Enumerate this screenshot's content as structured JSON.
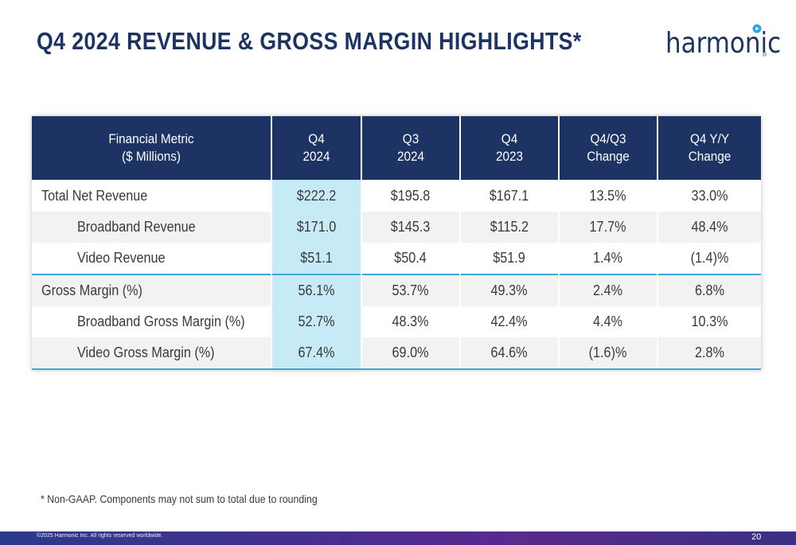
{
  "title": "Q4 2024 REVENUE & GROSS MARGIN HIGHLIGHTS*",
  "logo": {
    "text": "harmonic",
    "registered": "®",
    "icon": "play-dot-icon",
    "colors": {
      "text": "#1d3363",
      "dot": "#2aa7df"
    }
  },
  "table": {
    "headers": [
      {
        "line1": "Financial Metric",
        "line2": "($ Millions)"
      },
      {
        "line1": "Q4",
        "line2": "2024"
      },
      {
        "line1": "Q3",
        "line2": "2024"
      },
      {
        "line1": "Q4",
        "line2": "2023"
      },
      {
        "line1": "Q4/Q3",
        "line2": "Change"
      },
      {
        "line1": "Q4 Y/Y",
        "line2": "Change"
      }
    ],
    "rows": [
      {
        "metric": "Total Net Revenue",
        "q4_2024": "$222.2",
        "q3_2024": "$195.8",
        "q4_2023": "$167.1",
        "qoq": "13.5%",
        "yoy": "33.0%"
      },
      {
        "metric": "Broadband Revenue",
        "q4_2024": "$171.0",
        "q3_2024": "$145.3",
        "q4_2023": "$115.2",
        "qoq": "17.7%",
        "yoy": "48.4%"
      },
      {
        "metric": "Video Revenue",
        "q4_2024": "$51.1",
        "q3_2024": "$50.4",
        "q4_2023": "$51.9",
        "qoq": "1.4%",
        "yoy": "(1.4)%"
      },
      {
        "metric": "Gross Margin (%)",
        "q4_2024": "56.1%",
        "q3_2024": "53.7%",
        "q4_2023": "49.3%",
        "qoq": "2.4%",
        "yoy": "6.8%"
      },
      {
        "metric": "Broadband Gross Margin (%)",
        "q4_2024": "52.7%",
        "q3_2024": "48.3%",
        "q4_2023": "42.4%",
        "qoq": "4.4%",
        "yoy": "10.3%"
      },
      {
        "metric": "Video Gross Margin (%)",
        "q4_2024": "67.4%",
        "q3_2024": "69.0%",
        "q4_2023": "64.6%",
        "qoq": "(1.6)%",
        "yoy": "2.8%"
      }
    ],
    "colors": {
      "header_bg": "#1d3363",
      "highlight": "#c7eaf7",
      "rule": "#3fa6d6",
      "stripe": "#f2f2f2"
    }
  },
  "footnote": "* Non-GAAP. Components may not sum to total due to rounding",
  "footer": {
    "copyright": "©2025 Harmonic Inc. All rights reserved worldwide.",
    "page_number": "20"
  }
}
